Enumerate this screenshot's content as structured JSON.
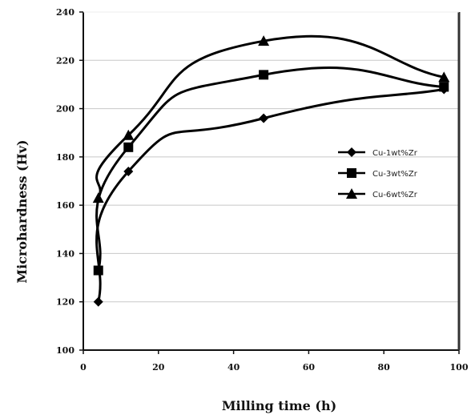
{
  "chart_data": {
    "type": "line",
    "title": "",
    "xlabel": "Milling time (h)",
    "ylabel": "Microhardness (Hv)",
    "xlim": [
      0,
      100
    ],
    "ylim": [
      100,
      240
    ],
    "x_ticks": [
      0,
      20,
      40,
      60,
      80,
      100
    ],
    "y_ticks": [
      100,
      120,
      140,
      160,
      180,
      200,
      220,
      240
    ],
    "grid": "horizontal",
    "legend_position": "right",
    "series": [
      {
        "name": "Cu-1wt%Zr",
        "marker": "diamond",
        "color": "#000000",
        "points": [
          {
            "x": 4,
            "y": 120
          },
          {
            "x": 12,
            "y": 174
          },
          {
            "x": 48,
            "y": 196
          },
          {
            "x": 96,
            "y": 208
          }
        ]
      },
      {
        "name": "Cu-3wt%Zr",
        "marker": "square",
        "color": "#000000",
        "points": [
          {
            "x": 4,
            "y": 133
          },
          {
            "x": 12,
            "y": 184
          },
          {
            "x": 48,
            "y": 214
          },
          {
            "x": 96,
            "y": 209
          }
        ]
      },
      {
        "name": "Cu-6wt%Zr",
        "marker": "triangle",
        "color": "#000000",
        "points": [
          {
            "x": 4,
            "y": 163
          },
          {
            "x": 12,
            "y": 189
          },
          {
            "x": 48,
            "y": 228
          },
          {
            "x": 96,
            "y": 213
          }
        ]
      }
    ]
  }
}
